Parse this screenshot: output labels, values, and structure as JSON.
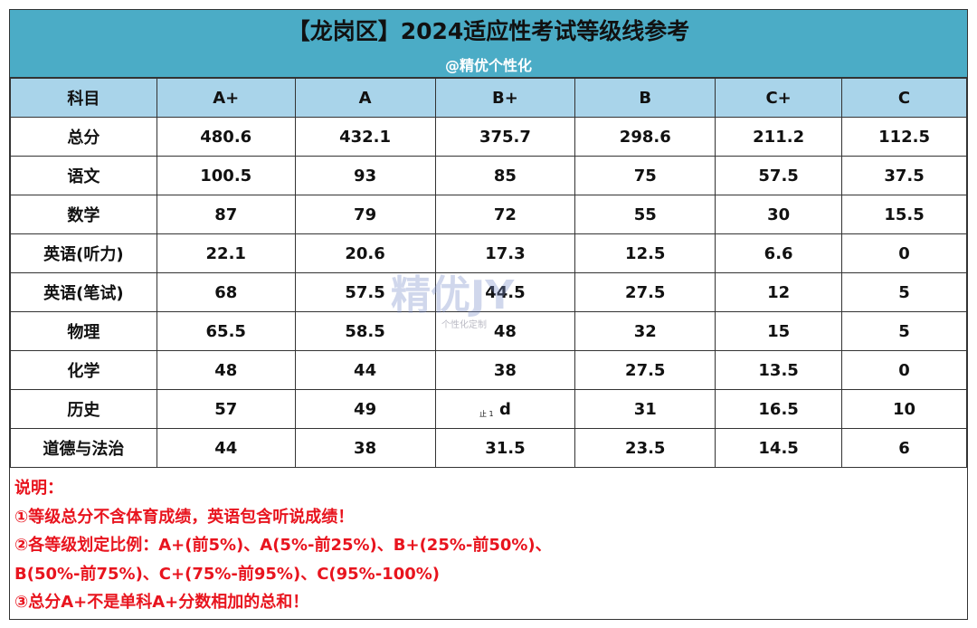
{
  "header": {
    "title": "【龙岗区】2024适应性考试等级线参考",
    "subtitle": "@精优个性化"
  },
  "table": {
    "columns": [
      "科目",
      "A+",
      "A",
      "B+",
      "B",
      "C+",
      "C"
    ],
    "rows": [
      [
        "总分",
        480.6,
        432.1,
        375.7,
        298.6,
        211.2,
        112.5
      ],
      [
        "语文",
        100.5,
        93,
        85,
        75,
        57.5,
        37.5
      ],
      [
        "数学",
        87,
        79,
        72,
        55,
        30,
        15.5
      ],
      [
        "英语(听力)",
        22.1,
        20.6,
        17.3,
        12.5,
        6.6,
        0
      ],
      [
        "英语(笔试)",
        68,
        57.5,
        44.5,
        27.5,
        12,
        5
      ],
      [
        "物理",
        65.5,
        58.5,
        48,
        32,
        15,
        5
      ],
      [
        "化学",
        48,
        44,
        38,
        27.5,
        13.5,
        0
      ],
      [
        "历史",
        57,
        49,
        "d",
        31,
        16.5,
        10
      ],
      [
        "道德与法治",
        44,
        38,
        31.5,
        23.5,
        14.5,
        6
      ]
    ],
    "stray_mark": "止 1"
  },
  "notes": [
    "说明：",
    "①等级总分不含体育成绩，英语包含听说成绩！",
    "②各等级划定比例：A+(前5%)、A(5%-前25%)、B+(25%-前50%)、",
    "B(50%-前75%)、C+(75%-前95%)、C(95%-100%)",
    "③总分A+不是单科A+分数相加的总和！"
  ],
  "watermark": {
    "logo": "精优JY",
    "tagline": "个性化定制"
  }
}
